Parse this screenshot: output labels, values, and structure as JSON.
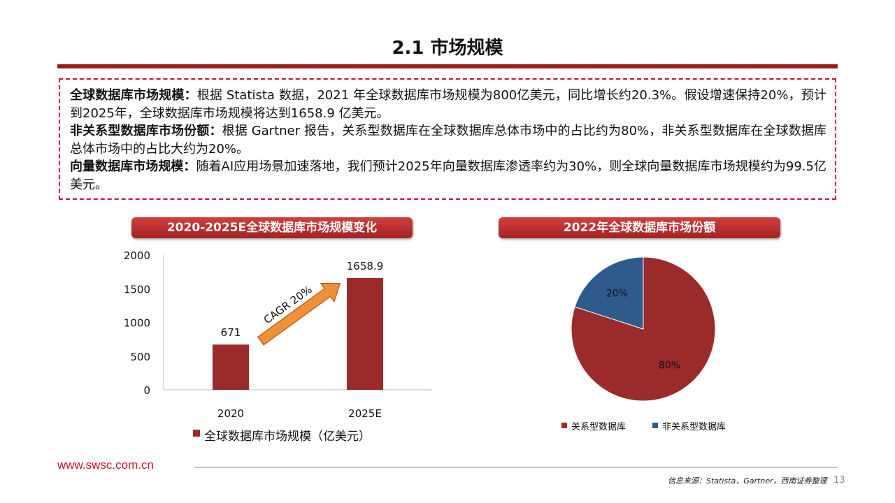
{
  "title": "2.1 市场规模",
  "summary": [
    {
      "label": "全球数据库市场规模：",
      "text": "根据 Statista 数据，2021 年全球数据库市场规模为800亿美元，同比增长约20.3%。假设增速保持20%，预计到2025年，全球数据库市场规模将达到1658.9 亿美元。"
    },
    {
      "label": "非关系型数据库市场份额：",
      "text": "根据 Gartner 报告，关系型数据库在全球数据库总体市场中的占比约为80%，非关系型数据库在全球数据库总体市场中的占比大约为20%。"
    },
    {
      "label": "向量数据库市场规模：",
      "text": "随着AI应用场景加速落地，我们预计2025年向量数据库渗透率约为30%，则全球向量数据库市场规模约为99.5亿美元。"
    }
  ],
  "chart_data": [
    {
      "type": "bar",
      "title": "2020-2025E全球数据库市场规模变化",
      "categories": [
        "2020",
        "2025E"
      ],
      "series": [
        {
          "name": "全球数据库市场规模（亿美元）",
          "values": [
            671,
            1658.9
          ]
        }
      ],
      "data_labels": [
        "671",
        "1658.9"
      ],
      "ylim": [
        0,
        2000
      ],
      "yticks": [
        "0",
        "500",
        "1000",
        "1500",
        "2000"
      ],
      "annotation": "CAGR 20%",
      "color": "#9b2a2a",
      "arrow_color": "#f0913a",
      "legend": "bottom",
      "grid": false
    },
    {
      "type": "pie",
      "title": "2022年全球数据库市场份额",
      "slices": [
        {
          "name": "关系型数据库",
          "value": 80,
          "label": "80%",
          "color": "#9b2a2a"
        },
        {
          "name": "非关系型数据库",
          "value": 20,
          "label": "20%",
          "color": "#2f5a8c"
        }
      ],
      "legend": "bottom"
    }
  ],
  "footer": {
    "url": "www.swsc.com.cn",
    "source": "信息来源：Statista，Gartner，西南证券整理",
    "page": "13"
  }
}
